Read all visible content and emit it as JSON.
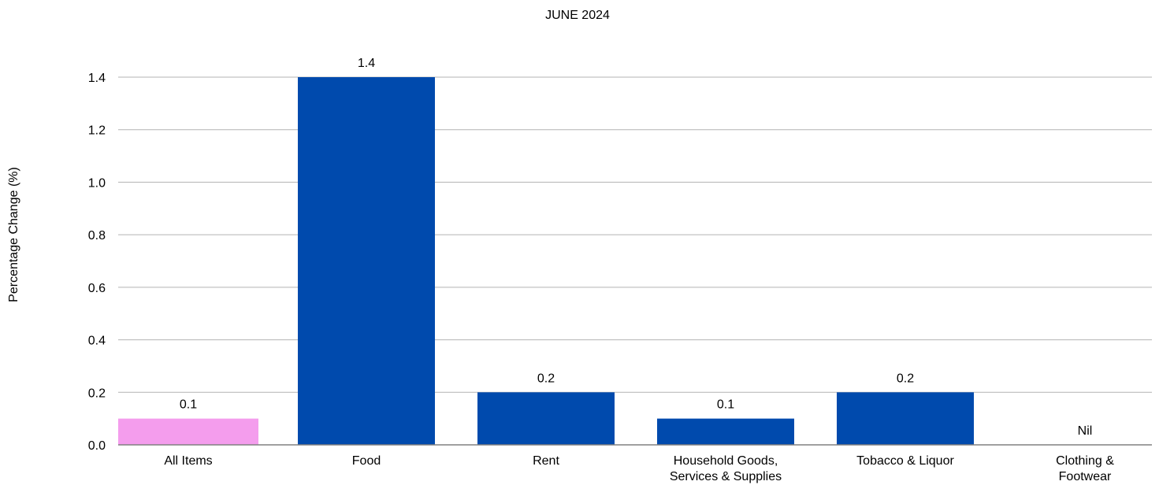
{
  "chart_data": {
    "type": "bar",
    "title": "JUNE 2024",
    "ylabel": "Percentage Change (%)",
    "xlabel": "",
    "ylim": [
      0,
      1.4
    ],
    "yticks": [
      "0.0",
      "0.2",
      "0.4",
      "0.6",
      "0.8",
      "1.0",
      "1.2",
      "1.4"
    ],
    "grid": true,
    "categories": [
      [
        "All Items"
      ],
      [
        "Food"
      ],
      [
        "Rent"
      ],
      [
        "Household Goods,",
        "Services & Supplies"
      ],
      [
        "Tobacco & Liquor"
      ],
      [
        "Clothing &",
        "Footwear"
      ]
    ],
    "values": [
      0.1,
      1.4,
      0.2,
      0.1,
      0.2,
      0
    ],
    "data_labels": [
      "0.1",
      "1.4",
      "0.2",
      "0.1",
      "0.2",
      "Nil"
    ],
    "colors": {
      "highlight": "#f49ded",
      "bar": "#004aad",
      "grid": "#b3b3b3",
      "baseline": "#808080"
    },
    "highlight_index": 0
  }
}
